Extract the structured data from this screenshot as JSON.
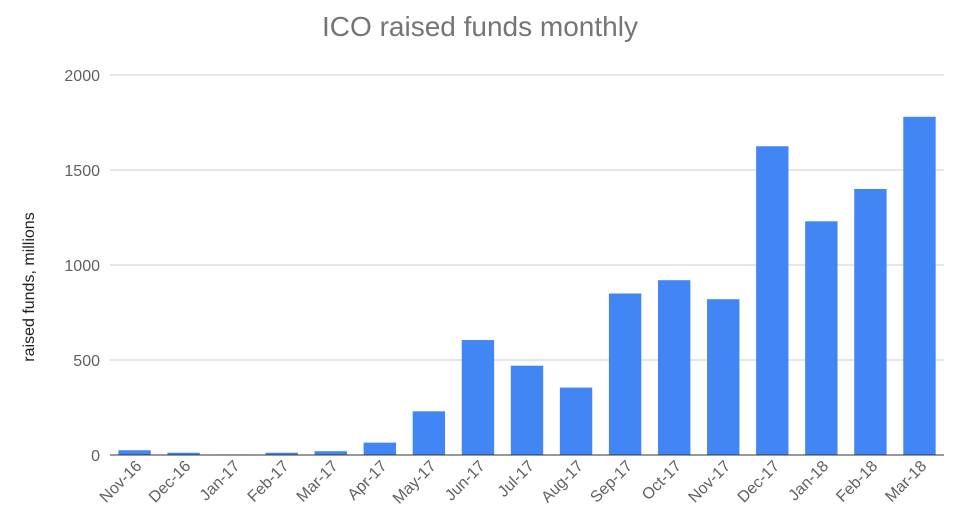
{
  "chart_data": {
    "type": "bar",
    "title": "ICO raised funds monthly",
    "xlabel": "",
    "ylabel": "raised funds, millions",
    "categories": [
      "Nov-16",
      "Dec-16",
      "Jan-17",
      "Feb-17",
      "Mar-17",
      "Apr-17",
      "May-17",
      "Jun-17",
      "Jul-17",
      "Aug-17",
      "Sep-17",
      "Oct-17",
      "Nov-17",
      "Dec-17",
      "Jan-18",
      "Feb-18",
      "Mar-18"
    ],
    "values": [
      25,
      12,
      3,
      12,
      20,
      65,
      230,
      605,
      470,
      355,
      850,
      920,
      820,
      1625,
      1230,
      1400,
      1780
    ],
    "ylim": [
      0,
      2000
    ],
    "yticks": [
      "0",
      "500",
      "1000",
      "1500",
      "2000"
    ],
    "grid": true,
    "legend": "none",
    "bar_color": "#4285f4"
  }
}
